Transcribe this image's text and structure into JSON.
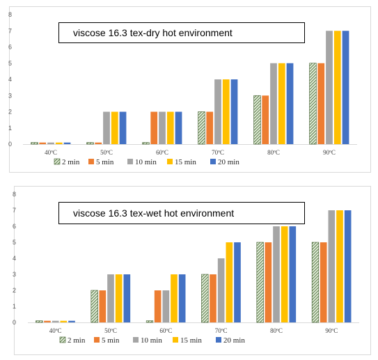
{
  "colors": {
    "2 min": "hatch-green",
    "5 min": "#ED7D31",
    "10 min": "#A5A5A5",
    "15 min": "#FFC000",
    "20 min": "#4472C4",
    "hatch_bg": "#e2efd9",
    "hatch_line": "#375623",
    "gridline": "#d9d9d9"
  },
  "chart_data": [
    {
      "type": "bar",
      "title": "viscose 16.3 tex-dry hot environment",
      "categories": [
        "40ºC",
        "50ºC",
        "60ºC",
        "70ºC",
        "80ºC",
        "90ºC"
      ],
      "series": [
        {
          "name": "2 min",
          "values": [
            0.1,
            0.1,
            0.1,
            2,
            3,
            5
          ]
        },
        {
          "name": "5 min",
          "values": [
            0.1,
            0.1,
            2,
            2,
            3,
            5
          ]
        },
        {
          "name": "10 min",
          "values": [
            0.1,
            2,
            2,
            4,
            5,
            7
          ]
        },
        {
          "name": "15 min",
          "values": [
            0.1,
            2,
            2,
            4,
            5,
            7
          ]
        },
        {
          "name": "20 min",
          "values": [
            0.1,
            2,
            2,
            4,
            5,
            7
          ]
        }
      ],
      "yticks": [
        "0",
        "1",
        "2",
        "3",
        "4",
        "5",
        "6",
        "7",
        "8"
      ],
      "ylim": [
        0,
        8
      ],
      "grid": false,
      "legend": "bottom"
    },
    {
      "type": "bar",
      "title": "viscose 16.3 tex-wet hot environment",
      "categories": [
        "40ºC",
        "50ºC",
        "60ºC",
        "70ºC",
        "80ºC",
        "90ºC"
      ],
      "series": [
        {
          "name": "2 min",
          "values": [
            0.1,
            2,
            0.1,
            3,
            5,
            5
          ]
        },
        {
          "name": "5 min",
          "values": [
            0.1,
            2,
            2,
            3,
            5,
            5
          ]
        },
        {
          "name": "10 min",
          "values": [
            0.1,
            3,
            2,
            4,
            6,
            7
          ]
        },
        {
          "name": "15 min",
          "values": [
            0.1,
            3,
            3,
            5,
            6,
            7
          ]
        },
        {
          "name": "20 min",
          "values": [
            0.1,
            3,
            3,
            5,
            6,
            7
          ]
        }
      ],
      "yticks": [
        "0",
        "1",
        "2",
        "3",
        "4",
        "5",
        "6",
        "7",
        "8"
      ],
      "ylim": [
        0,
        8
      ],
      "grid": false,
      "legend": "bottom"
    }
  ]
}
